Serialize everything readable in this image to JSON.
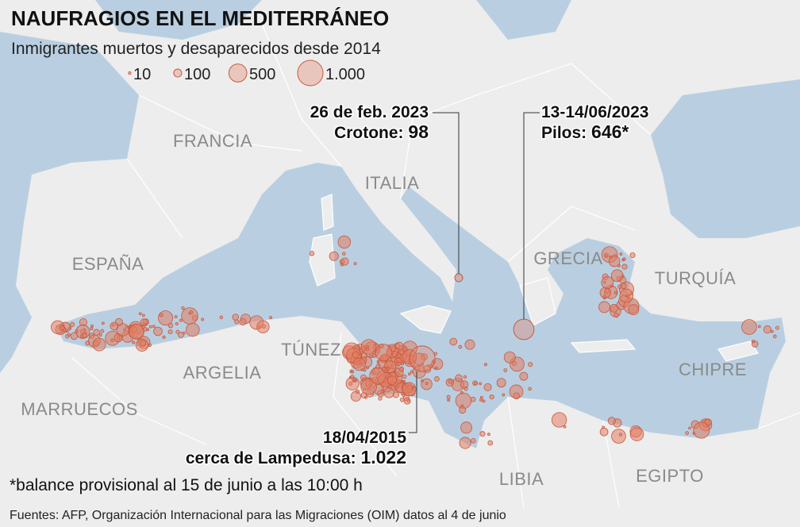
{
  "map": {
    "title": "NAUFRAGIOS EN EL MEDITERRÁNEO",
    "subtitle": "Inmigrantes muertos y desaparecidos desde 2014",
    "legend": [
      10,
      100,
      500,
      {
        "value": 1000,
        "label": "1.000"
      }
    ],
    "countries": [
      "FRANCIA",
      "ITALIA",
      "ESPAÑA",
      "GRECIA",
      "TURQUÍA",
      "TÚNEZ",
      "ARGELIA",
      "CHIPRE",
      "MARRUECOS",
      "LIBIA",
      "EGIPTO"
    ],
    "annotations": [
      {
        "date": "26 de feb. 2023",
        "place": "Crotone:",
        "value": 98
      },
      {
        "date": "13-14/06/2023",
        "place": "Pilos:",
        "value": 646,
        "value_label": "646*"
      },
      {
        "date": "18/04/2015",
        "place": "cerca de Lampedusa:",
        "value": 1022,
        "value_label": "1.022"
      }
    ],
    "footnote": "*balance provisional al 15 de junio a las 10:00 h",
    "source": "Fuentes: AFP, Organización Internacional para las Migraciones (OIM) datos al 4 de junio"
  }
}
